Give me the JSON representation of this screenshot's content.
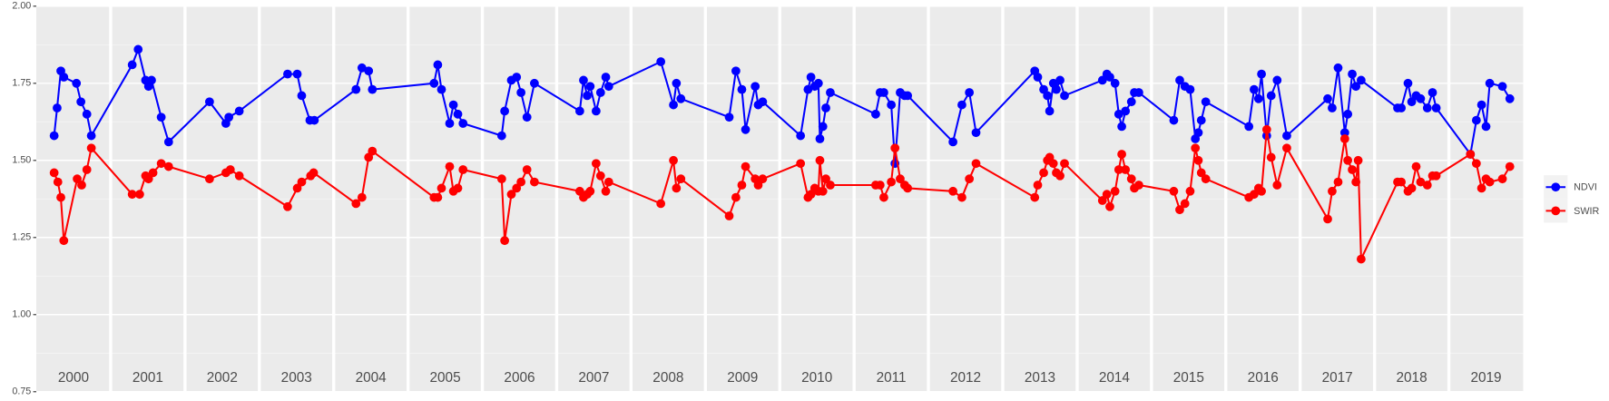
{
  "chart_data": {
    "type": "line",
    "xlim": [
      2000,
      2020
    ],
    "ylim": [
      0.75,
      2.0
    ],
    "yticks": [
      {
        "value": 0.75,
        "label": "0.75"
      },
      {
        "value": 1.0,
        "label": "1.00"
      },
      {
        "value": 1.25,
        "label": "1.25"
      },
      {
        "value": 1.5,
        "label": "1.50"
      },
      {
        "value": 1.75,
        "label": "1.75"
      },
      {
        "value": 2.0,
        "label": "2.00"
      }
    ],
    "grid": true,
    "legend": "right",
    "year_labels": [
      "2000",
      "2001",
      "2002",
      "2003",
      "2004",
      "2005",
      "2006",
      "2007",
      "2008",
      "2009",
      "2010",
      "2011",
      "2012",
      "2013",
      "2014",
      "2015",
      "2016",
      "2017",
      "2018",
      "2019"
    ],
    "series": [
      {
        "name": "NDVI",
        "color": "#0000ff",
        "x": [
          2000.24,
          2000.28,
          2000.33,
          2000.37,
          2000.54,
          2000.6,
          2000.68,
          2000.74,
          2001.29,
          2001.37,
          2001.47,
          2001.51,
          2001.55,
          2001.68,
          2001.78,
          2002.33,
          2002.55,
          2002.59,
          2002.73,
          2003.38,
          2003.51,
          2003.57,
          2003.68,
          2003.74,
          2004.3,
          2004.38,
          2004.47,
          2004.52,
          2005.35,
          2005.4,
          2005.45,
          2005.56,
          2005.61,
          2005.67,
          2005.74,
          2006.26,
          2006.3,
          2006.39,
          2006.46,
          2006.52,
          2006.6,
          2006.7,
          2007.31,
          2007.36,
          2007.41,
          2007.45,
          2007.53,
          2007.59,
          2007.66,
          2007.7,
          2008.4,
          2008.57,
          2008.61,
          2008.67,
          2009.32,
          2009.41,
          2009.49,
          2009.54,
          2009.67,
          2009.71,
          2009.77,
          2010.28,
          2010.38,
          2010.42,
          2010.47,
          2010.52,
          2010.54,
          2010.58,
          2010.62,
          2010.68,
          2011.29,
          2011.35,
          2011.4,
          2011.5,
          2011.55,
          2011.62,
          2011.68,
          2011.72,
          2012.33,
          2012.45,
          2012.55,
          2012.64,
          2013.43,
          2013.47,
          2013.55,
          2013.6,
          2013.63,
          2013.68,
          2013.72,
          2013.77,
          2013.83,
          2014.34,
          2014.4,
          2014.44,
          2014.51,
          2014.56,
          2014.6,
          2014.65,
          2014.73,
          2014.77,
          2014.83,
          2015.3,
          2015.38,
          2015.45,
          2015.52,
          2015.59,
          2015.63,
          2015.67,
          2015.73,
          2016.31,
          2016.38,
          2016.44,
          2016.48,
          2016.55,
          2016.61,
          2016.69,
          2016.82,
          2017.37,
          2017.43,
          2017.51,
          2017.6,
          2017.64,
          2017.7,
          2017.75,
          2017.82,
          2018.31,
          2018.36,
          2018.45,
          2018.5,
          2018.56,
          2018.62,
          2018.71,
          2018.78,
          2018.83,
          2019.29,
          2019.37,
          2019.44,
          2019.5,
          2019.55,
          2019.72,
          2019.82
        ],
        "values": [
          1.58,
          1.67,
          1.79,
          1.77,
          1.75,
          1.69,
          1.65,
          1.58,
          1.81,
          1.86,
          1.76,
          1.74,
          1.76,
          1.64,
          1.56,
          1.69,
          1.62,
          1.64,
          1.66,
          1.78,
          1.78,
          1.71,
          1.63,
          1.63,
          1.73,
          1.8,
          1.79,
          1.73,
          1.75,
          1.81,
          1.73,
          1.62,
          1.68,
          1.65,
          1.62,
          1.58,
          1.66,
          1.76,
          1.77,
          1.72,
          1.64,
          1.75,
          1.66,
          1.76,
          1.71,
          1.74,
          1.66,
          1.72,
          1.77,
          1.74,
          1.82,
          1.68,
          1.75,
          1.7,
          1.64,
          1.79,
          1.73,
          1.6,
          1.74,
          1.68,
          1.69,
          1.58,
          1.73,
          1.77,
          1.74,
          1.75,
          1.57,
          1.61,
          1.67,
          1.72,
          1.65,
          1.72,
          1.72,
          1.68,
          1.49,
          1.72,
          1.71,
          1.71,
          1.56,
          1.68,
          1.72,
          1.59,
          1.79,
          1.77,
          1.73,
          1.71,
          1.66,
          1.75,
          1.73,
          1.76,
          1.71,
          1.76,
          1.78,
          1.77,
          1.75,
          1.65,
          1.61,
          1.66,
          1.69,
          1.72,
          1.72,
          1.63,
          1.76,
          1.74,
          1.73,
          1.57,
          1.59,
          1.63,
          1.69,
          1.61,
          1.73,
          1.7,
          1.78,
          1.58,
          1.71,
          1.76,
          1.58,
          1.7,
          1.67,
          1.8,
          1.59,
          1.65,
          1.78,
          1.74,
          1.76,
          1.67,
          1.67,
          1.75,
          1.69,
          1.71,
          1.7,
          1.67,
          1.72,
          1.67,
          1.52,
          1.63,
          1.68,
          1.61,
          1.75,
          1.74,
          1.7
        ]
      },
      {
        "name": "SWIR",
        "color": "#ff0000",
        "x": [
          2000.24,
          2000.29,
          2000.33,
          2000.37,
          2000.55,
          2000.61,
          2000.68,
          2000.74,
          2001.29,
          2001.39,
          2001.47,
          2001.51,
          2001.57,
          2001.68,
          2001.78,
          2002.33,
          2002.55,
          2002.61,
          2002.73,
          2003.38,
          2003.51,
          2003.57,
          2003.69,
          2003.73,
          2004.3,
          2004.38,
          2004.47,
          2004.52,
          2005.35,
          2005.4,
          2005.45,
          2005.56,
          2005.61,
          2005.67,
          2005.74,
          2006.26,
          2006.3,
          2006.39,
          2006.46,
          2006.52,
          2006.6,
          2006.7,
          2007.31,
          2007.36,
          2007.41,
          2007.45,
          2007.53,
          2007.59,
          2007.66,
          2007.7,
          2008.4,
          2008.57,
          2008.61,
          2008.67,
          2009.32,
          2009.41,
          2009.49,
          2009.54,
          2009.67,
          2009.71,
          2009.77,
          2010.28,
          2010.38,
          2010.42,
          2010.47,
          2010.52,
          2010.54,
          2010.58,
          2010.62,
          2010.68,
          2011.29,
          2011.35,
          2011.4,
          2011.5,
          2011.55,
          2011.62,
          2011.68,
          2011.72,
          2012.33,
          2012.45,
          2012.55,
          2012.64,
          2013.43,
          2013.47,
          2013.55,
          2013.6,
          2013.63,
          2013.68,
          2013.72,
          2013.77,
          2013.83,
          2014.34,
          2014.4,
          2014.44,
          2014.51,
          2014.56,
          2014.6,
          2014.65,
          2014.73,
          2014.77,
          2014.83,
          2015.3,
          2015.38,
          2015.45,
          2015.52,
          2015.59,
          2015.63,
          2015.67,
          2015.73,
          2016.31,
          2016.38,
          2016.44,
          2016.48,
          2016.55,
          2016.61,
          2016.69,
          2016.82,
          2017.37,
          2017.43,
          2017.51,
          2017.6,
          2017.64,
          2017.7,
          2017.75,
          2017.78,
          2017.82,
          2018.31,
          2018.36,
          2018.45,
          2018.5,
          2018.56,
          2018.62,
          2018.71,
          2018.78,
          2018.83,
          2019.29,
          2019.37,
          2019.44,
          2019.5,
          2019.55,
          2019.72,
          2019.82
        ],
        "values": [
          1.46,
          1.43,
          1.38,
          1.24,
          1.44,
          1.42,
          1.47,
          1.54,
          1.39,
          1.39,
          1.45,
          1.44,
          1.46,
          1.49,
          1.48,
          1.44,
          1.46,
          1.47,
          1.45,
          1.35,
          1.41,
          1.43,
          1.45,
          1.46,
          1.36,
          1.38,
          1.51,
          1.53,
          1.38,
          1.38,
          1.41,
          1.48,
          1.4,
          1.41,
          1.47,
          1.44,
          1.24,
          1.39,
          1.41,
          1.43,
          1.47,
          1.43,
          1.4,
          1.38,
          1.39,
          1.4,
          1.49,
          1.45,
          1.4,
          1.43,
          1.36,
          1.5,
          1.41,
          1.44,
          1.32,
          1.38,
          1.42,
          1.48,
          1.44,
          1.42,
          1.44,
          1.49,
          1.38,
          1.39,
          1.41,
          1.4,
          1.5,
          1.4,
          1.44,
          1.42,
          1.42,
          1.42,
          1.38,
          1.43,
          1.54,
          1.44,
          1.42,
          1.41,
          1.4,
          1.38,
          1.44,
          1.49,
          1.38,
          1.42,
          1.46,
          1.5,
          1.51,
          1.49,
          1.46,
          1.45,
          1.49,
          1.37,
          1.39,
          1.35,
          1.4,
          1.47,
          1.52,
          1.47,
          1.44,
          1.41,
          1.42,
          1.4,
          1.34,
          1.36,
          1.4,
          1.54,
          1.5,
          1.46,
          1.44,
          1.38,
          1.39,
          1.41,
          1.4,
          1.6,
          1.51,
          1.42,
          1.54,
          1.31,
          1.4,
          1.43,
          1.57,
          1.5,
          1.47,
          1.43,
          1.5,
          1.18,
          1.43,
          1.43,
          1.4,
          1.41,
          1.48,
          1.43,
          1.42,
          1.45,
          1.45,
          1.52,
          1.49,
          1.41,
          1.44,
          1.43,
          1.44,
          1.48
        ]
      }
    ]
  }
}
